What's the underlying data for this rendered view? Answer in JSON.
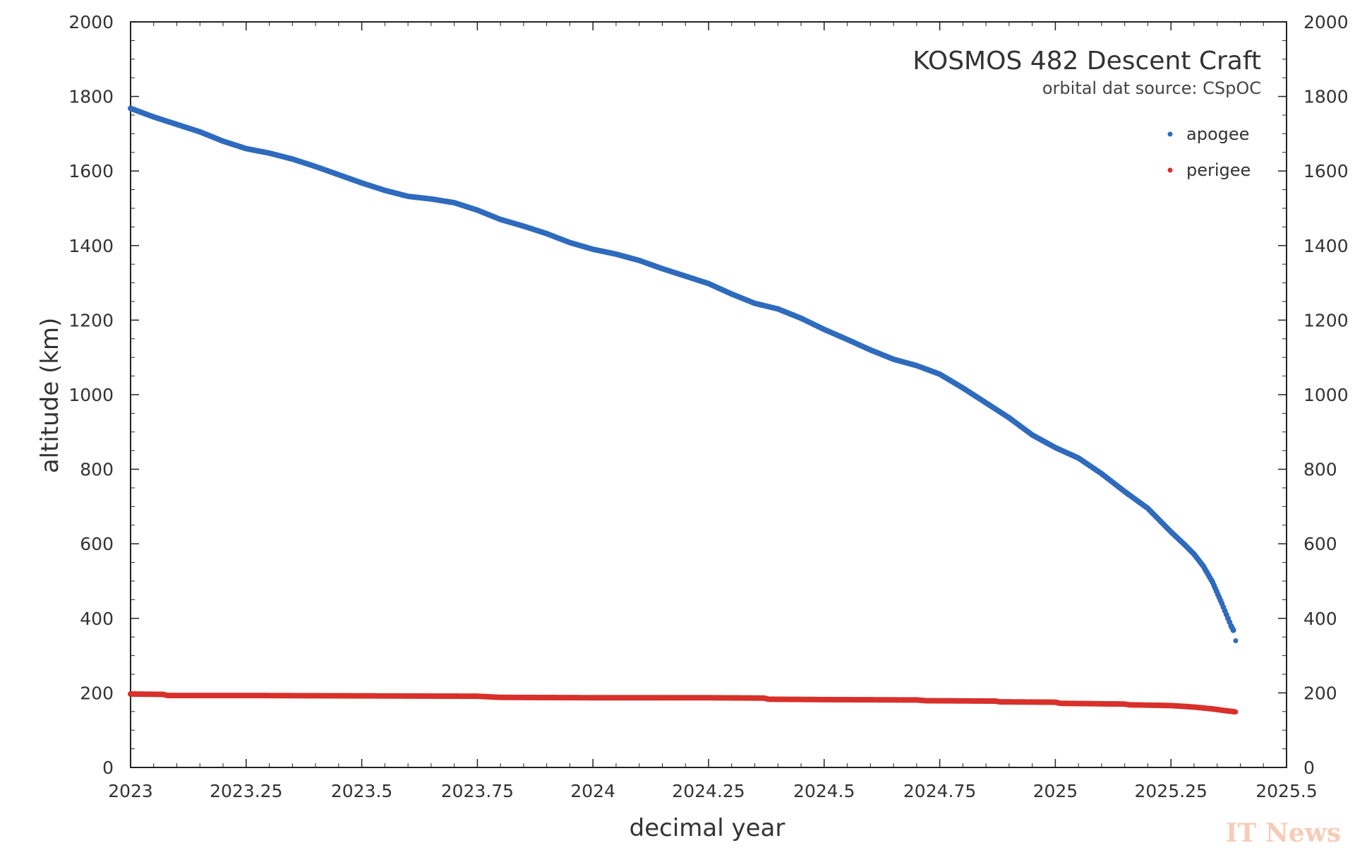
{
  "chart_data": {
    "type": "scatter",
    "title": "KOSMOS 482 Descent Craft",
    "subtitle": "orbital dat source:  CSpOC",
    "xlabel": "decimal year",
    "ylabel": "altitude (km)",
    "xlim": [
      2023,
      2025.5
    ],
    "ylim": [
      0,
      2000
    ],
    "x_ticks": [
      "2023",
      "2023.25",
      "2023.5",
      "2023.75",
      "2024",
      "2024.25",
      "2024.5",
      "2024.75",
      "2025",
      "2025.25",
      "2025.5"
    ],
    "y_ticks": [
      "0",
      "200",
      "400",
      "600",
      "800",
      "1000",
      "1200",
      "1400",
      "1600",
      "1800",
      "2000"
    ],
    "grid": false,
    "legend_position": "top-right",
    "series": [
      {
        "name": "apogee",
        "color": "#2f6bbd",
        "points": [
          [
            2023.0,
            1768
          ],
          [
            2023.05,
            1745
          ],
          [
            2023.1,
            1725
          ],
          [
            2023.15,
            1705
          ],
          [
            2023.2,
            1680
          ],
          [
            2023.25,
            1660
          ],
          [
            2023.3,
            1648
          ],
          [
            2023.35,
            1632
          ],
          [
            2023.4,
            1612
          ],
          [
            2023.45,
            1590
          ],
          [
            2023.5,
            1568
          ],
          [
            2023.55,
            1548
          ],
          [
            2023.6,
            1532
          ],
          [
            2023.65,
            1525
          ],
          [
            2023.7,
            1515
          ],
          [
            2023.75,
            1495
          ],
          [
            2023.8,
            1470
          ],
          [
            2023.85,
            1452
          ],
          [
            2023.9,
            1432
          ],
          [
            2023.95,
            1408
          ],
          [
            2024.0,
            1390
          ],
          [
            2024.05,
            1377
          ],
          [
            2024.1,
            1360
          ],
          [
            2024.15,
            1338
          ],
          [
            2024.2,
            1318
          ],
          [
            2024.25,
            1298
          ],
          [
            2024.3,
            1270
          ],
          [
            2024.35,
            1245
          ],
          [
            2024.4,
            1230
          ],
          [
            2024.45,
            1205
          ],
          [
            2024.5,
            1175
          ],
          [
            2024.55,
            1148
          ],
          [
            2024.6,
            1120
          ],
          [
            2024.65,
            1095
          ],
          [
            2024.7,
            1078
          ],
          [
            2024.75,
            1055
          ],
          [
            2024.8,
            1018
          ],
          [
            2024.85,
            978
          ],
          [
            2024.9,
            938
          ],
          [
            2024.95,
            892
          ],
          [
            2025.0,
            858
          ],
          [
            2025.05,
            830
          ],
          [
            2025.1,
            788
          ],
          [
            2025.15,
            740
          ],
          [
            2025.2,
            695
          ],
          [
            2025.25,
            632
          ],
          [
            2025.28,
            597
          ],
          [
            2025.3,
            572
          ],
          [
            2025.32,
            540
          ],
          [
            2025.34,
            497
          ],
          [
            2025.36,
            440
          ],
          [
            2025.37,
            410
          ],
          [
            2025.38,
            380
          ],
          [
            2025.385,
            368
          ],
          [
            2025.39,
            340
          ]
        ]
      },
      {
        "name": "perigee",
        "color": "#d8302a",
        "points": [
          [
            2023.0,
            197
          ],
          [
            2023.07,
            196
          ],
          [
            2023.08,
            193
          ],
          [
            2023.25,
            193
          ],
          [
            2023.5,
            192
          ],
          [
            2023.75,
            191
          ],
          [
            2023.8,
            188
          ],
          [
            2024.0,
            187
          ],
          [
            2024.25,
            187
          ],
          [
            2024.37,
            186
          ],
          [
            2024.38,
            183
          ],
          [
            2024.5,
            182
          ],
          [
            2024.7,
            181
          ],
          [
            2024.72,
            179
          ],
          [
            2024.87,
            178
          ],
          [
            2024.88,
            176
          ],
          [
            2025.0,
            175
          ],
          [
            2025.01,
            172
          ],
          [
            2025.15,
            170
          ],
          [
            2025.16,
            168
          ],
          [
            2025.25,
            166
          ],
          [
            2025.3,
            162
          ],
          [
            2025.34,
            157
          ],
          [
            2025.37,
            152
          ],
          [
            2025.39,
            149
          ]
        ]
      }
    ]
  },
  "watermark_text": "IT News"
}
